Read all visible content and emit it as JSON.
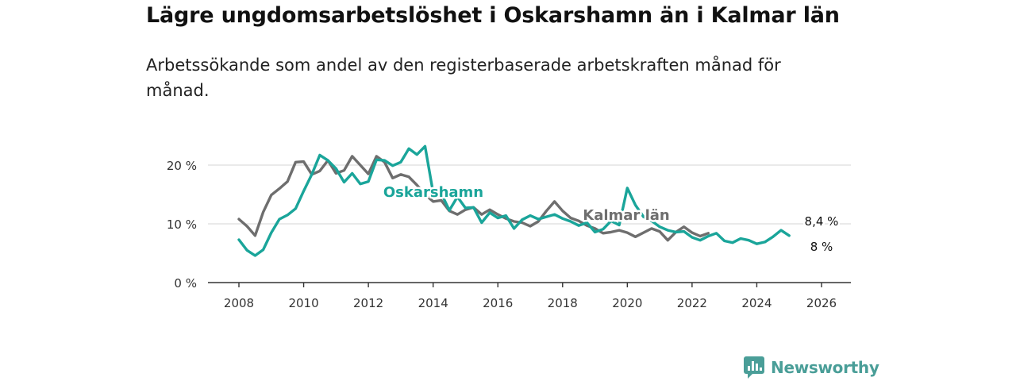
{
  "title": "Lägre ungdomsarbetslöshet i Oskarshamn än i Kalmar län",
  "subtitle": "Arbetssökande som andel av den registerbaserade arbetskraften månad för månad.",
  "brand": "Newsworthy",
  "colors": {
    "oskarshamn": "#1aa59a",
    "kalmar": "#6e6e6e",
    "grid": "#dddddd",
    "axis": "#333333",
    "brand": "#4a9e98"
  },
  "chart_data": {
    "type": "line",
    "title": "Lägre ungdomsarbetslöshet i Oskarshamn än i Kalmar län",
    "xlabel": "",
    "ylabel": "",
    "xlim": [
      2007.5,
      2027
    ],
    "ylim": [
      0,
      25
    ],
    "x_ticks": [
      2008,
      2010,
      2012,
      2014,
      2016,
      2018,
      2020,
      2022,
      2024,
      2026
    ],
    "x_tick_labels": [
      "2008",
      "2010",
      "2012",
      "2014",
      "2016",
      "2018",
      "2020",
      "2022",
      "2024",
      "2026"
    ],
    "y_ticks": [
      0,
      10,
      20
    ],
    "y_tick_labels": [
      "0 %",
      "10 %",
      "20 %"
    ],
    "grid": true,
    "x_step": 0.25,
    "series": [
      {
        "name": "Oskarshamn",
        "label": "Oskarshamn",
        "end_label": "8 %",
        "x_start": 2008.0,
        "values": [
          7.3,
          5.5,
          4.6,
          5.6,
          8.5,
          10.8,
          11.5,
          12.6,
          15.6,
          18.4,
          21.7,
          20.8,
          19.4,
          17.1,
          18.6,
          16.8,
          17.2,
          20.9,
          20.8,
          19.9,
          20.5,
          22.8,
          21.8,
          23.2,
          15.3,
          15.2,
          12.3,
          14.6,
          12.7,
          12.8,
          10.2,
          11.9,
          11.0,
          11.4,
          9.2,
          10.7,
          11.4,
          10.8,
          11.2,
          11.6,
          10.9,
          10.4,
          9.7,
          10.2,
          8.6,
          9.1,
          10.5,
          9.8,
          16.1,
          13.2,
          11.2,
          10.5,
          9.5,
          8.9,
          8.6,
          8.7,
          7.7,
          7.2,
          7.9,
          8.4,
          7.1,
          6.8,
          7.5,
          7.2,
          6.6,
          6.9,
          7.8,
          8.9,
          8.0
        ]
      },
      {
        "name": "Kalmar län",
        "label": "Kalmar län",
        "end_label": "8,4 %",
        "x_start": 2008.0,
        "values": [
          10.8,
          9.6,
          8.0,
          12.0,
          14.9,
          16.0,
          17.2,
          20.5,
          20.6,
          18.4,
          19.0,
          20.8,
          18.6,
          19.1,
          21.5,
          20.0,
          18.5,
          21.5,
          20.5,
          17.8,
          18.4,
          18.0,
          16.6,
          15.0,
          13.8,
          14.0,
          12.2,
          11.6,
          12.4,
          12.8,
          11.6,
          12.4,
          11.6,
          10.9,
          10.4,
          10.2,
          9.6,
          10.4,
          12.2,
          13.8,
          12.2,
          11.0,
          10.5,
          9.7,
          9.2,
          8.4,
          8.6,
          8.9,
          8.5,
          7.8,
          8.5,
          9.2,
          8.7,
          7.2,
          8.6,
          9.5,
          8.5,
          7.9,
          8.4
        ]
      }
    ]
  }
}
